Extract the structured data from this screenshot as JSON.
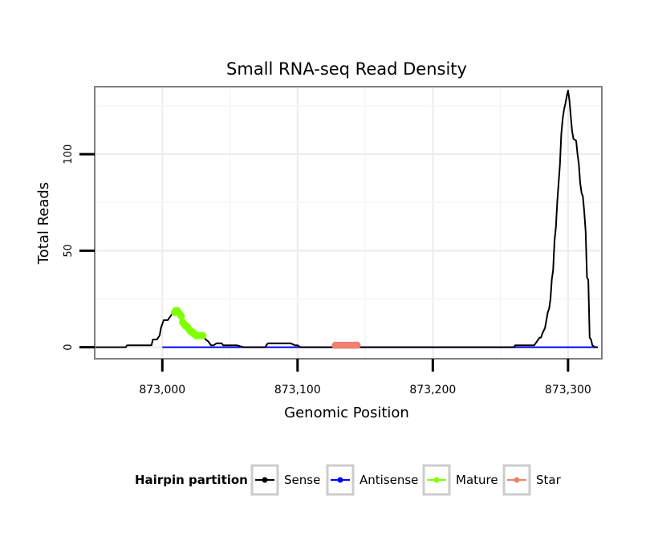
{
  "chart_data": {
    "type": "line",
    "title": "Small RNA-seq Read Density",
    "xlabel": "Genomic Position",
    "ylabel": "Total Reads",
    "xlim": [
      872950,
      873325
    ],
    "ylim": [
      -6,
      135
    ],
    "x_ticks": [
      873000,
      873100,
      873200,
      873300
    ],
    "x_tick_labels": [
      "873,000",
      "873,100",
      "873,200",
      "873,300"
    ],
    "y_ticks": [
      0,
      50,
      100
    ],
    "y_tick_labels": [
      "0",
      "50",
      "100"
    ],
    "grid": true,
    "legend": {
      "title": "Hairpin partition",
      "placement": "bottom",
      "entries": [
        {
          "label": "Sense",
          "color": "#000000"
        },
        {
          "label": "Antisense",
          "color": "#0000ff"
        },
        {
          "label": "Mature",
          "color": "#7fff00"
        },
        {
          "label": "Star",
          "color": "#f08070"
        }
      ]
    },
    "series": [
      {
        "name": "Sense",
        "color": "#000000",
        "points": [
          [
            872950,
            0
          ],
          [
            872973,
            0
          ],
          [
            872974,
            1
          ],
          [
            872989,
            1
          ],
          [
            872990,
            1
          ],
          [
            872992,
            1
          ],
          [
            872993,
            4
          ],
          [
            872995,
            4
          ],
          [
            872996,
            4
          ],
          [
            872998,
            6
          ],
          [
            872999,
            10
          ],
          [
            873000,
            12
          ],
          [
            873001,
            14
          ],
          [
            873003,
            14
          ],
          [
            873004,
            14
          ],
          [
            873005,
            15
          ],
          [
            873006,
            16
          ],
          [
            873007,
            17
          ],
          [
            873008,
            18
          ],
          [
            873009,
            18
          ],
          [
            873010,
            19
          ],
          [
            873011,
            19
          ],
          [
            873012,
            18
          ],
          [
            873013,
            17
          ],
          [
            873014,
            16
          ],
          [
            873015,
            13
          ],
          [
            873016,
            12
          ],
          [
            873017,
            11
          ],
          [
            873018,
            11
          ],
          [
            873019,
            10
          ],
          [
            873020,
            9
          ],
          [
            873021,
            8
          ],
          [
            873022,
            8
          ],
          [
            873023,
            7
          ],
          [
            873024,
            7
          ],
          [
            873025,
            6
          ],
          [
            873026,
            6
          ],
          [
            873027,
            6
          ],
          [
            873028,
            6
          ],
          [
            873030,
            6
          ],
          [
            873032,
            4
          ],
          [
            873034,
            3
          ],
          [
            873036,
            1
          ],
          [
            873038,
            1
          ],
          [
            873040,
            2
          ],
          [
            873044,
            2
          ],
          [
            873045,
            1
          ],
          [
            873050,
            1
          ],
          [
            873055,
            1
          ],
          [
            873060,
            0
          ],
          [
            873070,
            0
          ],
          [
            873076,
            0
          ],
          [
            873078,
            2
          ],
          [
            873095,
            2
          ],
          [
            873098,
            1
          ],
          [
            873100,
            1
          ],
          [
            873102,
            0
          ],
          [
            873260,
            0
          ],
          [
            873261,
            1
          ],
          [
            873275,
            1
          ],
          [
            873277,
            3
          ],
          [
            873279,
            5
          ],
          [
            873280,
            5
          ],
          [
            873281,
            7
          ],
          [
            873283,
            10
          ],
          [
            873284,
            14
          ],
          [
            873285,
            18
          ],
          [
            873286,
            20
          ],
          [
            873287,
            25
          ],
          [
            873288,
            35
          ],
          [
            873289,
            40
          ],
          [
            873290,
            55
          ],
          [
            873291,
            62
          ],
          [
            873292,
            75
          ],
          [
            873293,
            85
          ],
          [
            873294,
            95
          ],
          [
            873295,
            110
          ],
          [
            873296,
            118
          ],
          [
            873297,
            123
          ],
          [
            873298,
            126
          ],
          [
            873299,
            130
          ],
          [
            873300,
            133
          ],
          [
            873301,
            128
          ],
          [
            873302,
            120
          ],
          [
            873303,
            112
          ],
          [
            873304,
            108
          ],
          [
            873306,
            107
          ],
          [
            873307,
            100
          ],
          [
            873308,
            95
          ],
          [
            873309,
            85
          ],
          [
            873310,
            80
          ],
          [
            873311,
            78
          ],
          [
            873312,
            70
          ],
          [
            873313,
            60
          ],
          [
            873314,
            36
          ],
          [
            873315,
            35
          ],
          [
            873316,
            5
          ],
          [
            873317,
            4
          ],
          [
            873318,
            1
          ],
          [
            873320,
            0
          ],
          [
            873322,
            0
          ]
        ]
      },
      {
        "name": "Antisense",
        "color": "#0000ff",
        "points": [
          [
            873000,
            0
          ],
          [
            873322,
            0
          ]
        ]
      },
      {
        "name": "Mature",
        "color": "#7fff00",
        "points": [
          [
            873009,
            18
          ],
          [
            873010,
            19
          ],
          [
            873011,
            19
          ],
          [
            873012,
            18
          ],
          [
            873013,
            17
          ],
          [
            873014,
            16
          ],
          [
            873015,
            13
          ],
          [
            873016,
            12
          ],
          [
            873017,
            11
          ],
          [
            873018,
            11
          ],
          [
            873019,
            10
          ],
          [
            873020,
            9
          ],
          [
            873021,
            8
          ],
          [
            873022,
            8
          ],
          [
            873023,
            7
          ],
          [
            873024,
            7
          ],
          [
            873025,
            6
          ],
          [
            873026,
            6
          ],
          [
            873027,
            6
          ],
          [
            873028,
            6
          ],
          [
            873029,
            6
          ],
          [
            873030,
            6
          ]
        ]
      },
      {
        "name": "Star",
        "color": "#f08070",
        "points": [
          [
            873128,
            1
          ],
          [
            873130,
            1
          ],
          [
            873132,
            1
          ],
          [
            873134,
            1
          ],
          [
            873136,
            1
          ],
          [
            873138,
            1
          ],
          [
            873140,
            1
          ],
          [
            873142,
            1
          ],
          [
            873144,
            1
          ]
        ]
      }
    ]
  }
}
